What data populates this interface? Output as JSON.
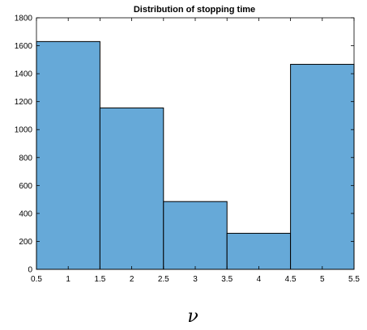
{
  "chart_data": {
    "type": "bar",
    "title": "Distribution of stopping time",
    "xlabel": "ν",
    "ylabel": "",
    "bins": [
      {
        "from": 0.5,
        "to": 1.5,
        "value": 1630
      },
      {
        "from": 1.5,
        "to": 2.5,
        "value": 1155
      },
      {
        "from": 2.5,
        "to": 3.5,
        "value": 485
      },
      {
        "from": 3.5,
        "to": 4.5,
        "value": 258
      },
      {
        "from": 4.5,
        "to": 5.5,
        "value": 1467
      }
    ],
    "xlim": [
      0.5,
      5.5
    ],
    "ylim": [
      0,
      1800
    ],
    "xticks": [
      "0.5",
      "1",
      "1.5",
      "2",
      "2.5",
      "3",
      "3.5",
      "4",
      "4.5",
      "5",
      "5.5"
    ],
    "yticks": [
      "0",
      "200",
      "400",
      "600",
      "800",
      "1000",
      "1200",
      "1400",
      "1600",
      "1800"
    ],
    "grid": false,
    "bar_color": "#66a9d8",
    "edge_color": "#000000"
  }
}
